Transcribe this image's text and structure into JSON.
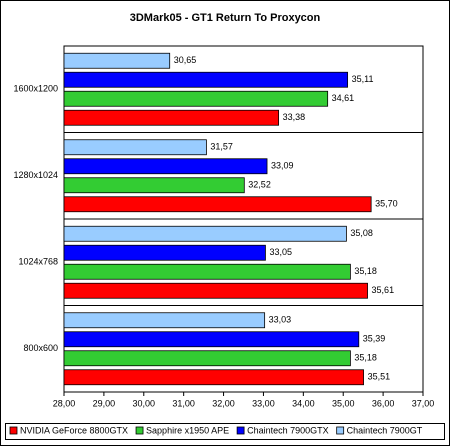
{
  "chart_data": {
    "type": "bar",
    "orientation": "horizontal",
    "title": "3DMark05 - GT1 Return To Proxycon",
    "categories": [
      "1600x1200",
      "1280x1024",
      "1024x768",
      "800x600"
    ],
    "series": [
      {
        "name": "NVIDIA GeForce 8800GTX",
        "color": "#ff0000",
        "values": [
          33.38,
          35.7,
          35.61,
          35.51
        ],
        "value_labels": [
          "33,38",
          "35,70",
          "35,61",
          "35,51"
        ]
      },
      {
        "name": "Sapphire x1950 APE",
        "color": "#33cc33",
        "values": [
          34.61,
          32.52,
          35.18,
          35.18
        ],
        "value_labels": [
          "34,61",
          "32,52",
          "35,18",
          "35,18"
        ]
      },
      {
        "name": "Chaintech 7900GTX",
        "color": "#0000ff",
        "values": [
          35.11,
          33.09,
          33.05,
          35.39
        ],
        "value_labels": [
          "35,11",
          "33,09",
          "33,05",
          "35,39"
        ]
      },
      {
        "name": "Chaintech 7900GT",
        "color": "#99ccff",
        "values": [
          30.65,
          31.57,
          35.08,
          33.03
        ],
        "value_labels": [
          "30,65",
          "31,57",
          "35,08",
          "33,03"
        ]
      }
    ],
    "xlim": [
      28,
      37
    ],
    "xticks": [
      {
        "value": 28,
        "label": "28,00"
      },
      {
        "value": 29,
        "label": "29,00"
      },
      {
        "value": 30,
        "label": "30,00"
      },
      {
        "value": 31,
        "label": "31,00"
      },
      {
        "value": 32,
        "label": "32,00"
      },
      {
        "value": 33,
        "label": "33,00"
      },
      {
        "value": 34,
        "label": "34,00"
      },
      {
        "value": 35,
        "label": "35,00"
      },
      {
        "value": 36,
        "label": "36,00"
      },
      {
        "value": 37,
        "label": "37,00"
      }
    ],
    "legend": "bottom"
  }
}
